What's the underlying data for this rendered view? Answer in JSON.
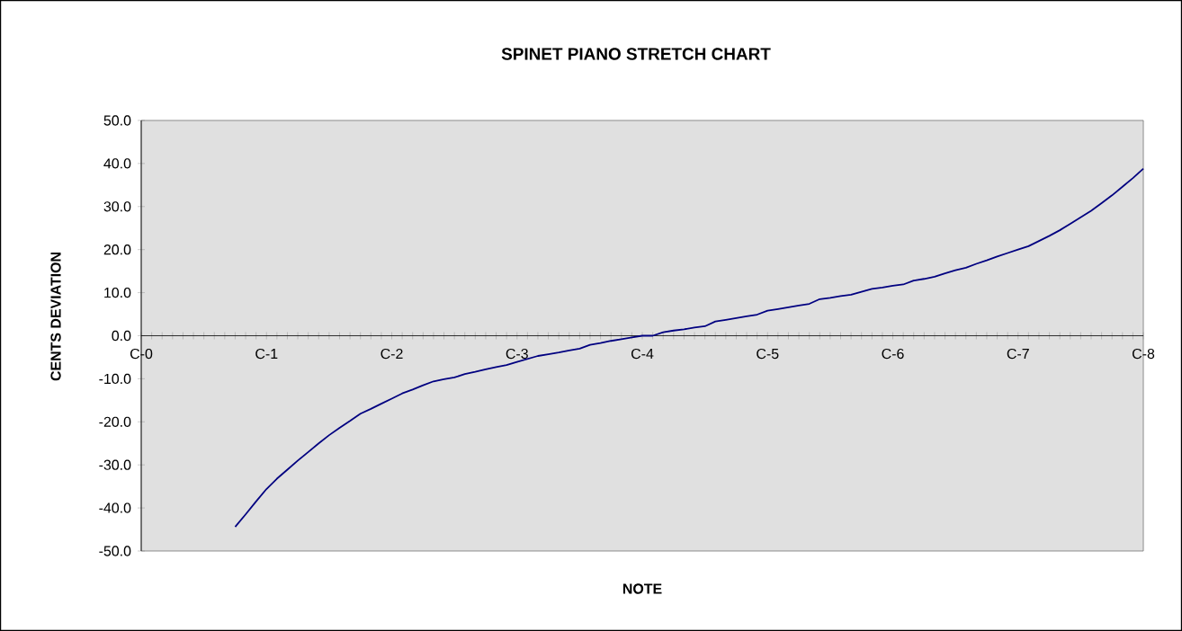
{
  "chart_data": {
    "type": "line",
    "title": "SPINET PIANO STRETCH CHART",
    "xlabel": "NOTE",
    "ylabel": "CENTS DEVIATION",
    "categories": [
      "C-0",
      null,
      null,
      null,
      null,
      null,
      null,
      null,
      null,
      null,
      null,
      null,
      "C-1",
      null,
      null,
      null,
      null,
      null,
      null,
      null,
      null,
      null,
      null,
      null,
      "C-2",
      null,
      null,
      null,
      null,
      null,
      null,
      null,
      null,
      null,
      null,
      null,
      "C-3",
      null,
      null,
      null,
      null,
      null,
      null,
      null,
      null,
      null,
      null,
      null,
      "C-4",
      null,
      null,
      null,
      null,
      null,
      null,
      null,
      null,
      null,
      null,
      null,
      "C-5",
      null,
      null,
      null,
      null,
      null,
      null,
      null,
      null,
      null,
      null,
      null,
      "C-6",
      null,
      null,
      null,
      null,
      null,
      null,
      null,
      null,
      null,
      null,
      null,
      "C-7",
      null,
      null,
      null,
      null,
      null,
      null,
      null,
      null,
      null,
      null,
      null,
      "C-8"
    ],
    "series": [
      {
        "color": "#000080",
        "values": [
          null,
          null,
          null,
          null,
          null,
          null,
          null,
          null,
          null,
          -44.4,
          -41.5,
          -38.5,
          -35.6,
          -33.2,
          -31.1,
          -29.0,
          -27.0,
          -25.0,
          -23.1,
          -21.4,
          -19.8,
          -18.1,
          -17.0,
          -15.8,
          -14.6,
          -13.4,
          -12.5,
          -11.5,
          -10.6,
          -10.1,
          -9.7,
          -8.9,
          -8.4,
          -7.8,
          -7.3,
          -6.8,
          -6.1,
          -5.4,
          -4.7,
          -4.3,
          -3.9,
          -3.4,
          -3.0,
          -2.1,
          -1.7,
          -1.2,
          -0.8,
          -0.4,
          0.0,
          0.0,
          0.8,
          1.2,
          1.5,
          1.9,
          2.2,
          3.3,
          3.7,
          4.1,
          4.5,
          4.9,
          5.8,
          6.2,
          6.6,
          7.0,
          7.4,
          8.5,
          8.8,
          9.2,
          9.5,
          10.2,
          10.9,
          11.2,
          11.6,
          11.9,
          12.8,
          13.2,
          13.7,
          14.5,
          15.2,
          15.8,
          16.7,
          17.5,
          18.4,
          19.2,
          20.0,
          20.8,
          22.0,
          23.2,
          24.5,
          26.0,
          27.5,
          29.0,
          30.8,
          32.6,
          34.6,
          36.6,
          38.8
        ]
      }
    ],
    "ylim": [
      -50,
      50
    ],
    "yticks": [
      {
        "value": -50,
        "label": "-50.0"
      },
      {
        "value": -40,
        "label": "-40.0"
      },
      {
        "value": -30,
        "label": "-30.0"
      },
      {
        "value": -20,
        "label": "-20.0"
      },
      {
        "value": -10,
        "label": "-10.0"
      },
      {
        "value": 0,
        "label": "0.0"
      },
      {
        "value": 10,
        "label": "10.0"
      },
      {
        "value": 20,
        "label": "20.0"
      },
      {
        "value": 30,
        "label": "30.0"
      },
      {
        "value": 40,
        "label": "40.0"
      },
      {
        "value": 50,
        "label": "50.0"
      }
    ],
    "grid": false,
    "marker": "none",
    "line_style": "solid"
  }
}
